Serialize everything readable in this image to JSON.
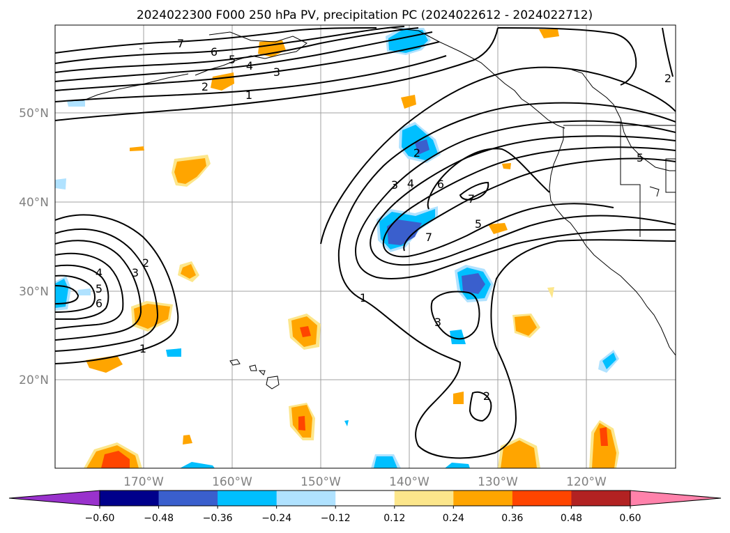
{
  "title": "2024022300 F000 250 hPa PV, precipitation PC (2024022612 - 2024022712)",
  "lat_labels": [
    "50°N",
    "40°N",
    "30°N",
    "20°N"
  ],
  "lon_labels": [
    "170°W",
    "160°W",
    "150°W",
    "140°W",
    "130°W",
    "120°W"
  ],
  "contour_labels": {
    "upper_left": [
      "7",
      "6",
      "5",
      "4",
      "3",
      "2",
      "1"
    ],
    "left_low": [
      "2",
      "3",
      "4",
      "5",
      "6",
      "1"
    ],
    "trough": [
      "3",
      "4",
      "6",
      "7",
      "5",
      "7",
      "1",
      "3",
      "2",
      "2",
      "5",
      "2"
    ]
  },
  "colorbar": {
    "ticks": [
      "−0.60",
      "−0.48",
      "−0.36",
      "−0.24",
      "−0.12",
      "0.12",
      "0.24",
      "0.36",
      "0.48",
      "0.60"
    ],
    "colors": [
      "#9932cc",
      "#00008b",
      "#3a5fcd",
      "#00bfff",
      "#b0e2ff",
      "#ffffff",
      "#fce68b",
      "#ffa500",
      "#ff4500",
      "#b22222",
      "#ff82ab"
    ]
  }
}
